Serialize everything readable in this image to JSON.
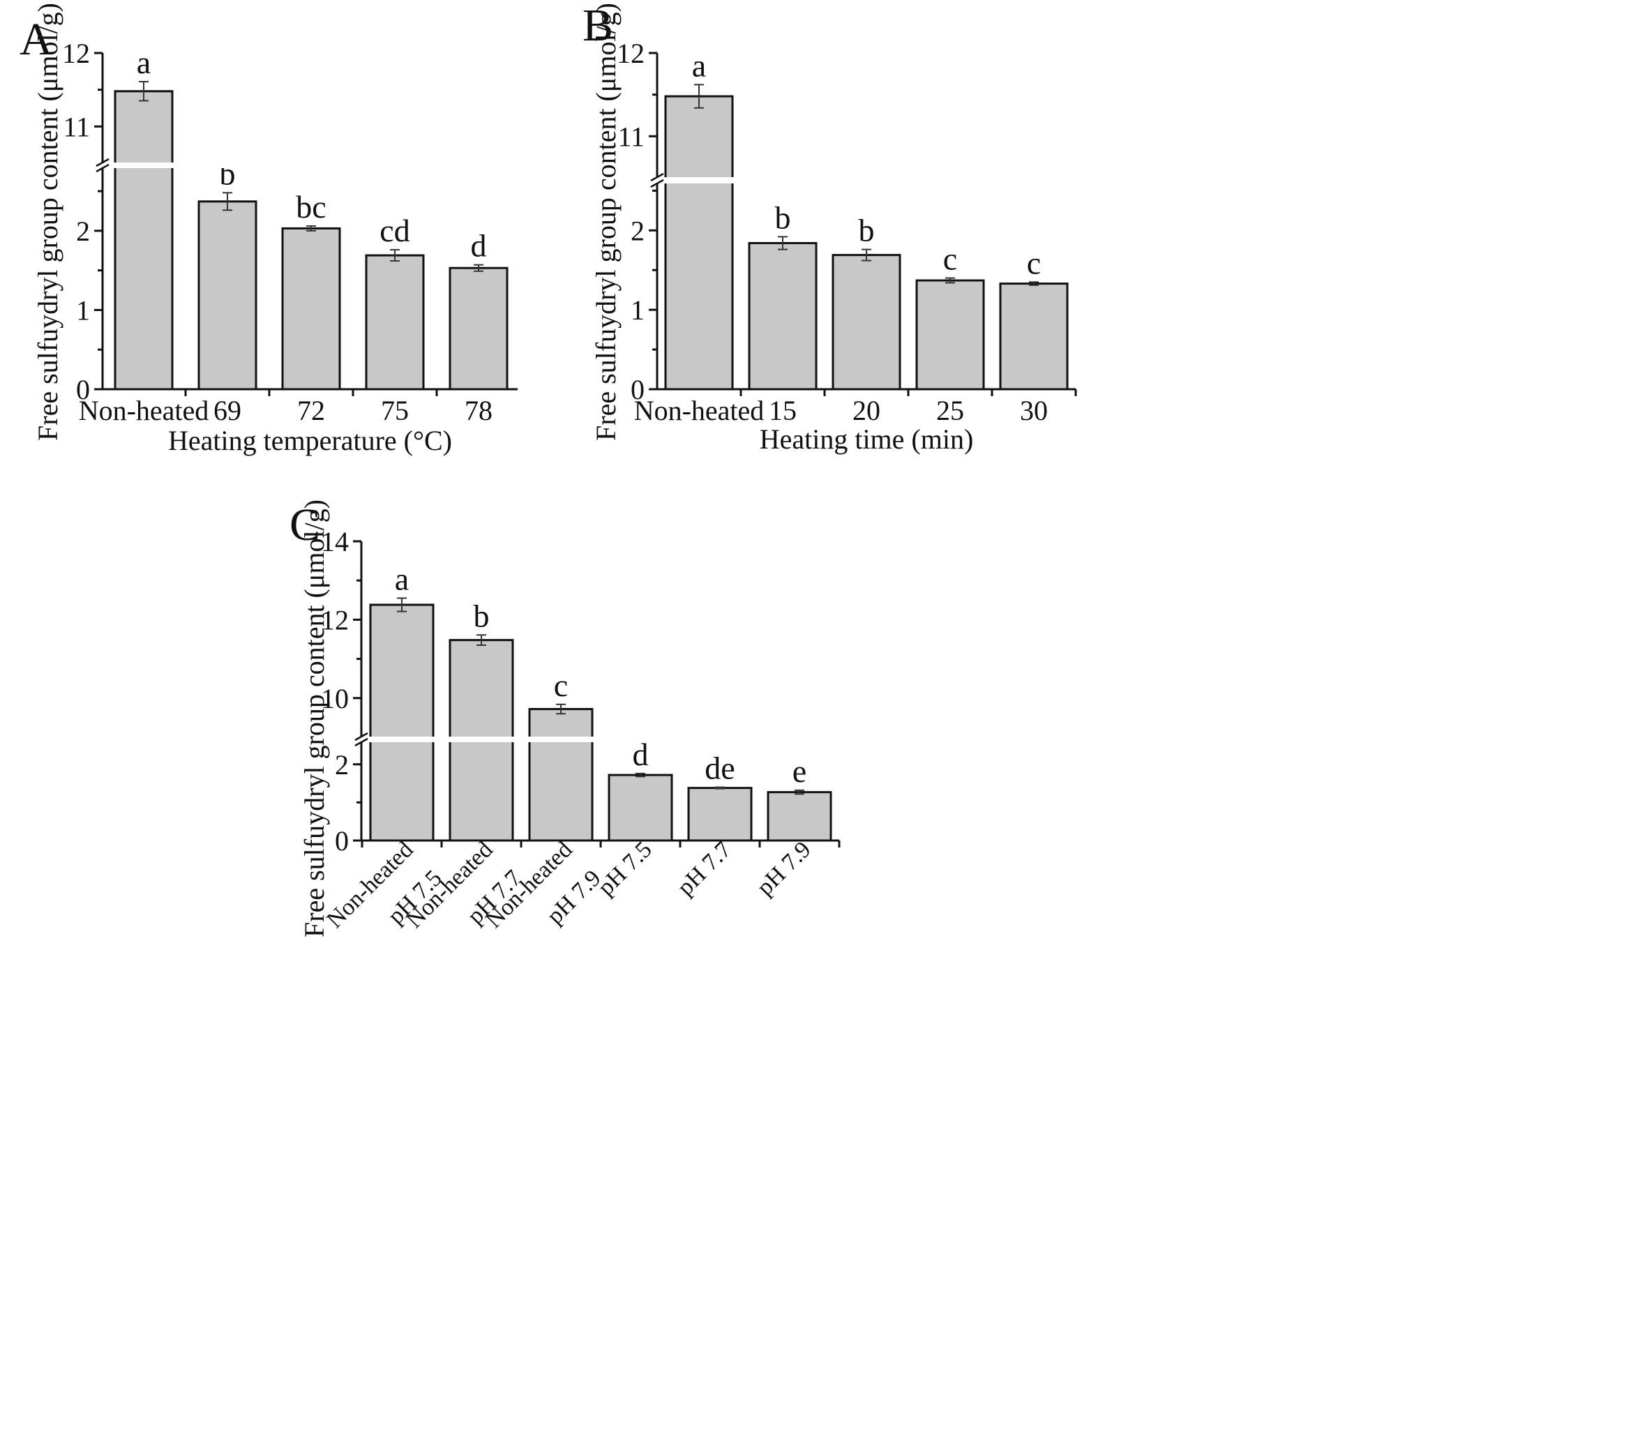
{
  "chart_data": [
    {
      "type": "bar",
      "panel": "A",
      "title": "",
      "xlabel": "Heating temperature (°C)",
      "ylabel": "Free sulfuydryl group content (μmol/g)",
      "y_break": [
        2.8,
        10.5
      ],
      "ylim_lower": [
        0,
        2.8
      ],
      "ylim_upper": [
        10.5,
        12
      ],
      "yticks_lower": [
        0,
        1,
        2
      ],
      "yticks_upper": [
        11,
        12
      ],
      "categories": [
        "Non-heated",
        "69",
        "72",
        "75",
        "78"
      ],
      "values": [
        11.48,
        2.37,
        2.03,
        1.69,
        1.53
      ],
      "errors": [
        0.13,
        0.11,
        0.03,
        0.07,
        0.04
      ],
      "significance": [
        "a",
        "b",
        "bc",
        "cd",
        "d"
      ]
    },
    {
      "type": "bar",
      "panel": "B",
      "title": "",
      "xlabel": "Heating time (min)",
      "ylabel": "Free sulfuydryl group content (μmol/g)",
      "y_break": [
        2.6,
        10.5
      ],
      "ylim_lower": [
        0,
        2.6
      ],
      "ylim_upper": [
        10.5,
        12
      ],
      "yticks_lower": [
        0,
        1,
        2
      ],
      "yticks_upper": [
        11,
        12
      ],
      "categories": [
        "Non-heated",
        "15",
        "20",
        "25",
        "30"
      ],
      "values": [
        11.48,
        1.84,
        1.69,
        1.37,
        1.33
      ],
      "errors": [
        0.14,
        0.08,
        0.07,
        0.03,
        0.02
      ],
      "significance": [
        "a",
        "b",
        "b",
        "c",
        "c"
      ]
    },
    {
      "type": "bar",
      "panel": "C",
      "title": "",
      "xlabel": "",
      "ylabel": "Free sulfuydryl group content (μmol/g)",
      "y_break": [
        2.6,
        9.0
      ],
      "ylim_lower": [
        0,
        2.6
      ],
      "ylim_upper": [
        9.0,
        14
      ],
      "yticks_lower": [
        0,
        2
      ],
      "yticks_upper": [
        10,
        12,
        14
      ],
      "categories": [
        "Non-heated\npH 7.5",
        "Non-heated\npH 7.7",
        "Non-heated\npH 7.9",
        "pH 7.5",
        "pH 7.7",
        "pH 7.9"
      ],
      "values": [
        12.38,
        11.48,
        9.72,
        1.72,
        1.38,
        1.27
      ],
      "errors": [
        0.17,
        0.13,
        0.12,
        0.04,
        0.02,
        0.05
      ],
      "significance": [
        "a",
        "b",
        "c",
        "d",
        "de",
        "e"
      ]
    }
  ]
}
